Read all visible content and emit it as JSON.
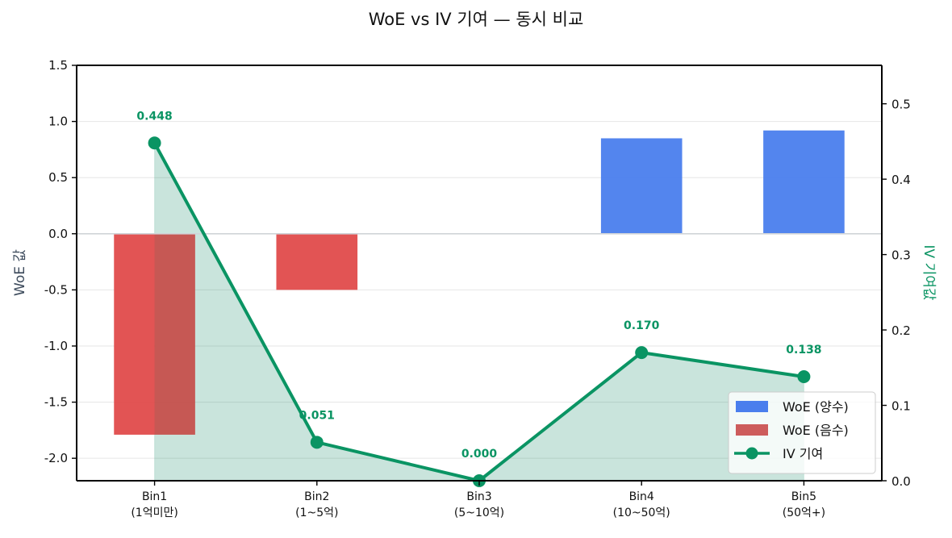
{
  "chart_data": {
    "type": "bar+line",
    "title": "WoE vs IV 기여 — 동시 비교",
    "categories": [
      "Bin1\n(1억미만)",
      "Bin2\n(1~5억)",
      "Bin3\n(5~10억)",
      "Bin4\n(10~50억)",
      "Bin5\n(50억+)"
    ],
    "category_lines": [
      [
        "Bin1",
        "(1억미만)"
      ],
      [
        "Bin2",
        "(1~5억)"
      ],
      [
        "Bin3",
        "(5~10억)"
      ],
      [
        "Bin4",
        "(10~50억)"
      ],
      [
        "Bin5",
        "(50억+)"
      ]
    ],
    "series": [
      {
        "name": "WoE (양수)",
        "type": "bar",
        "axis": "left",
        "color": "#4a7eed",
        "values": [
          null,
          null,
          null,
          0.85,
          0.92
        ]
      },
      {
        "name": "WoE (음수)",
        "type": "bar",
        "axis": "left",
        "color": "#e04b4b",
        "legend_color": "#cd5c5c",
        "values": [
          -1.79,
          -0.5,
          null,
          null,
          null
        ]
      },
      {
        "name": "IV 기여",
        "type": "line",
        "axis": "right",
        "color": "#0a9463",
        "values": [
          0.448,
          0.051,
          0.0,
          0.17,
          0.138
        ],
        "labels": [
          "0.448",
          "0.051",
          "0.000",
          "0.170",
          "0.138"
        ],
        "fill_under": true
      }
    ],
    "woe_values": [
      -1.79,
      -0.5,
      0.0,
      0.85,
      0.92
    ],
    "xlabel": "",
    "ylabel": "WoE 값",
    "ylabel_right": "IV 기여값",
    "ylim": [
      -2.2,
      1.5
    ],
    "ylim_right": [
      0.0,
      0.551
    ],
    "yticks": [
      1.5,
      1.0,
      0.5,
      0.0,
      -0.5,
      -1.0,
      -1.5,
      -2.0
    ],
    "ytick_labels": [
      "1.5",
      "1.0",
      "0.5",
      "0.0",
      "-0.5",
      "-1.0",
      "-1.5",
      "-2.0"
    ],
    "yticks_right": [
      0.5,
      0.4,
      0.3,
      0.2,
      0.1,
      0.0
    ],
    "ytick_labels_right": [
      "0.5",
      "0.4",
      "0.3",
      "0.2",
      "0.1",
      "0.0"
    ],
    "grid": true,
    "legend_position": "lower right",
    "legend": [
      {
        "label": "WoE (양수)",
        "kind": "patch",
        "color": "#4a7eed"
      },
      {
        "label": "WoE (음수)",
        "kind": "patch",
        "color": "#cd5c5c"
      },
      {
        "label": "IV 기여",
        "kind": "line-marker",
        "color": "#0a9463"
      }
    ]
  }
}
